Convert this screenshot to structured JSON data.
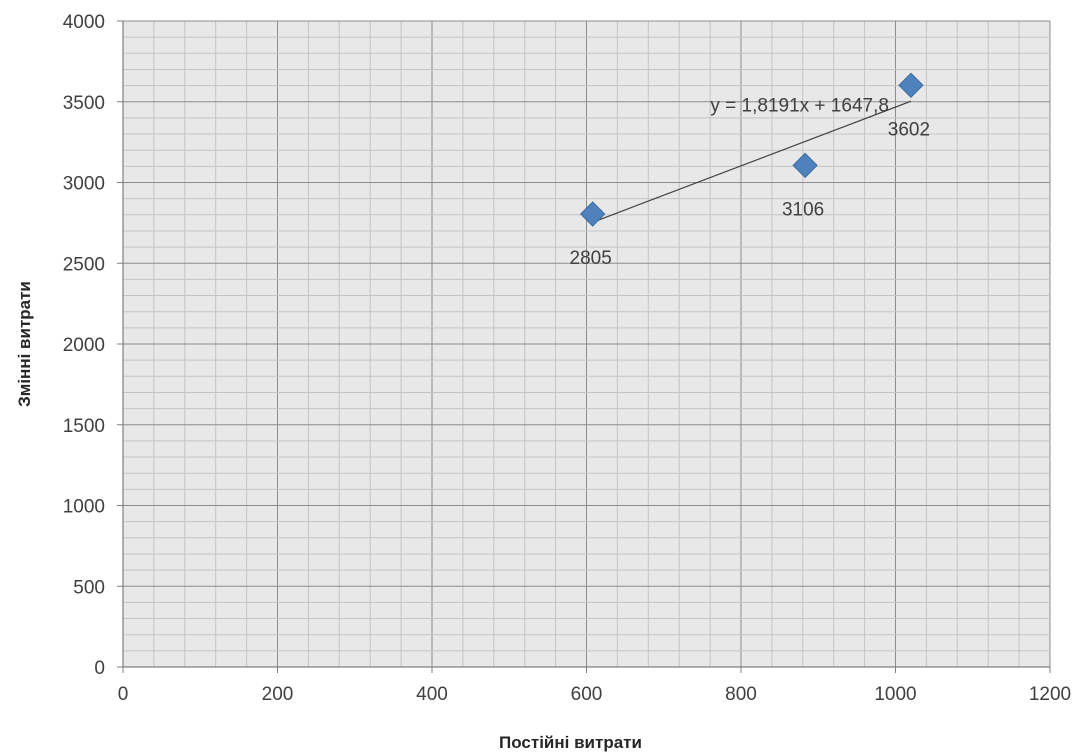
{
  "chart_data": {
    "type": "scatter",
    "title": "",
    "xlabel": "Постійні витрати",
    "ylabel": "Змінні витрати",
    "xlim": [
      0,
      1200
    ],
    "ylim": [
      0,
      4000
    ],
    "x_ticks": [
      "0",
      "200",
      "400",
      "600",
      "800",
      "1000",
      "1200"
    ],
    "y_ticks": [
      "0",
      "500",
      "1000",
      "1500",
      "2000",
      "2500",
      "3000",
      "3500",
      "4000"
    ],
    "grid": true,
    "legend": "none",
    "series": [
      {
        "points": [
          {
            "x": 608,
            "y": 2805,
            "label": "2805"
          },
          {
            "x": 883,
            "y": 3106,
            "label": "3106"
          },
          {
            "x": 1020,
            "y": 3602,
            "label": "3602"
          }
        ],
        "color": "#4F81BD",
        "marker": "diamond"
      }
    ],
    "trendline": {
      "type": "linear",
      "slope": 1.8191,
      "intercept": 1647.8,
      "x_range": [
        608,
        1020
      ],
      "equation": "y = 1,8191x + 1647,8",
      "color": "#404040"
    },
    "plot_background": "#e8e8e8"
  }
}
